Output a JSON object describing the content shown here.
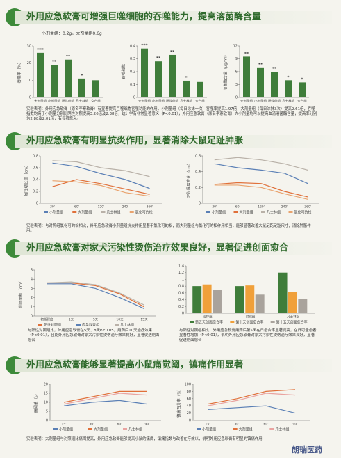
{
  "sections": [
    {
      "title": "外用应急软膏可增强巨噬细胞的吞噬能力，提高溶菌酶含量",
      "subtitle": "小剂量组：0.2g，大剂量组0.6g",
      "note": "实验表明：外用应急软膏（原名李寨软膏）有显著提高巨噬细胞吞噬功能的作用，小剂量组（每日涂抹一次）吞噬率提高1.97倍，大剂量组（每日涂抹3次）提高2.61倍，吞噬指数均高于小剂量分别比阴性对照提高3.26倍及2.38倍，统计学有非常显著意义（P<0.01），外用应急软膏（原名李寨软膏）大小剂量均可以提高血清溶菌酶含量，提高率分别为2.88及2.01倍，有显著意义。"
    },
    {
      "title": "外用应急软膏有明显抗炎作用，显著消除大鼠足趾肿胀",
      "note": "实验表明：与对照组氯化可的松相比，外用应急软膏小剂量组抗炎作用显著于氯化可的松，而大剂量组与氯化可的松作用相当，能够显著改善大鼠足跖足趾尺寸，消除肿胀作用。"
    },
    {
      "title": "外用应急软膏对家犬污染性烫伤治疗效果良好，显著促进创面愈合",
      "notes": [
        "与阳性对照组比，外用应急软膏在5天、8天P<0.05，用药后10天治疗效果（P<0.01），且能外用应急软膏对家犬污染性烫伤治疗效果良好，显著促进创面愈合",
        "与阳性对照组相比，外用应急软膏用药后第5天在日愈合率显著提高，在日可全愈者显著性增加（P<0.01），说明外用应急软膏对家犬污染性烫伤治疗效果良好，显著促进创面愈合"
      ]
    },
    {
      "title": "外用应急软膏能够显著提高小鼠痛觉阈，镇痛作用显著",
      "note": "实验表明：大剂量组与对照组比痛阈提高，外用应急软膏能够提高小鼠的痛阈，镇痛指数与改善在疗效以，说明外用应急软膏有明显的镇痛作用"
    }
  ],
  "watermark": "朗瑞医药",
  "chart_data": [
    {
      "type": "bar",
      "y_label": "吞噬率（%）",
      "categories": [
        "大剂量组",
        "小剂量组",
        "阳性药组",
        "凡士林组",
        "空白组"
      ],
      "values": [
        26,
        19,
        22,
        11,
        10
      ],
      "significance": [
        "***",
        "**",
        "**",
        "*",
        null
      ],
      "color": "#3f7d3a",
      "ylim": [
        0,
        30
      ],
      "yticks": [
        0,
        10,
        20,
        30
      ]
    },
    {
      "type": "bar",
      "y_label": "吞噬指数",
      "categories": [
        "大剂量组",
        "小剂量组",
        "阳性药组",
        "凡士林组",
        "空白组"
      ],
      "values": [
        0.38,
        0.28,
        0.33,
        0.13,
        0.12
      ],
      "significance": [
        "***",
        "**",
        "**",
        "*",
        null
      ],
      "color": "#3f7d3a",
      "ylim": [
        0,
        0.4
      ],
      "yticks": [
        0,
        0.1,
        0.2,
        0.3,
        0.4
      ]
    },
    {
      "type": "bar",
      "y_label": "溶菌酶含量（μg/ml）",
      "categories": [
        "大剂量组",
        "小剂量组",
        "阳性药组",
        "凡士林组",
        "空白组"
      ],
      "values": [
        9.5,
        7,
        6,
        4,
        3.5
      ],
      "significance": [
        "**",
        "**",
        "**",
        "*",
        "*"
      ],
      "color": "#3f7d3a",
      "ylim": [
        0,
        12
      ],
      "yticks": [
        0,
        3,
        6,
        9,
        12
      ]
    },
    {
      "type": "line",
      "y_label": "周径增长值（cm）",
      "categories": [
        "30'",
        "60'",
        "120'",
        "240'",
        "360'"
      ],
      "ylim": [
        0,
        0.8
      ],
      "yticks": [
        0,
        0.2,
        0.4,
        0.6,
        0.8
      ],
      "series": [
        {
          "name": "小剂量组",
          "color": "#5a7fb5",
          "values": [
            0.68,
            0.62,
            0.5,
            0.4,
            0.25
          ]
        },
        {
          "name": "大剂量组",
          "color": "#e0703a",
          "values": [
            0.28,
            0.4,
            0.33,
            0.24,
            0.15
          ]
        },
        {
          "name": "凡士林组",
          "color": "#b9b1a8",
          "values": [
            0.72,
            0.7,
            0.6,
            0.55,
            0.45
          ]
        },
        {
          "name": "氯化可的松",
          "color": "#e9a36e",
          "values": [
            0.38,
            0.36,
            0.3,
            0.18,
            0.12
          ]
        }
      ]
    },
    {
      "type": "line",
      "y_label": "足趾厚度变化（cm）",
      "categories": [
        "30'",
        "60'",
        "120'",
        "240'",
        "360'"
      ],
      "ylim": [
        0,
        0.6
      ],
      "yticks": [
        0,
        0.2,
        0.4,
        0.6
      ],
      "series": [
        {
          "name": "小剂量组",
          "color": "#5a7fb5",
          "values": [
            0.5,
            0.45,
            0.42,
            0.38,
            0.25
          ]
        },
        {
          "name": "大剂量组",
          "color": "#e0703a",
          "values": [
            0.24,
            0.26,
            0.25,
            0.15,
            0.08
          ]
        },
        {
          "name": "凡士林组",
          "color": "#b9b1a8",
          "values": [
            0.55,
            0.58,
            0.55,
            0.5,
            0.42
          ]
        },
        {
          "name": "氯化可的松",
          "color": "#e9a36e",
          "values": [
            0.23,
            0.23,
            0.2,
            0.12,
            0.05
          ]
        }
      ]
    },
    {
      "type": "line",
      "y_label": "创面面积（cm²）",
      "categories": [
        "初期程度",
        "1天",
        "5天",
        "10天",
        "15天"
      ],
      "ylim": [
        0,
        5
      ],
      "yticks": [
        0,
        1,
        2,
        3,
        4,
        5
      ],
      "series": [
        {
          "name": "阳性对照组",
          "color": "#e0703a",
          "values": [
            3.6,
            3.6,
            3.3,
            2.4,
            1.0
          ]
        },
        {
          "name": "应急软膏组",
          "color": "#5a7fb5",
          "values": [
            3.5,
            3.5,
            3.0,
            2.0,
            0.8
          ]
        },
        {
          "name": "凡士林组",
          "color": "#b9b1a8",
          "values": [
            3.6,
            3.7,
            3.4,
            2.5,
            1.2
          ]
        }
      ]
    },
    {
      "type": "bar",
      "categories": [
        "治疗组",
        "对照组",
        "凡士林组"
      ],
      "ylim": [
        0,
        1.4
      ],
      "yticks": [
        0,
        0.2,
        0.4,
        0.6,
        0.8,
        1,
        1.2,
        1.4
      ],
      "series": [
        {
          "name": "第五天创面愈合率",
          "color": "#3f7d3a",
          "values": [
            0.8,
            0.8,
            1.2
          ]
        },
        {
          "name": "第十天创面愈合率",
          "color": "#f0a03a",
          "values": [
            0.85,
            0.82,
            0.62
          ]
        },
        {
          "name": "第十五天创面愈合率",
          "color": "#a9a39c",
          "values": [
            0.7,
            0.55,
            0.42
          ]
        }
      ]
    },
    {
      "type": "line",
      "y_label": "痛阈值（s）",
      "categories": [
        "15'",
        "30'",
        "60'",
        "90'"
      ],
      "ylim": [
        0,
        20
      ],
      "yticks": [
        0,
        5,
        10,
        15,
        20
      ],
      "series": [
        {
          "name": "小剂量组",
          "color": "#5a7fb5",
          "values": [
            8,
            10,
            11,
            9
          ]
        },
        {
          "name": "大剂量组",
          "color": "#e0703a",
          "values": [
            10,
            13,
            16,
            16
          ]
        },
        {
          "name": "凡士林组",
          "color": "#e9a3a0",
          "values": [
            9,
            12,
            15,
            14
          ]
        }
      ]
    },
    {
      "type": "line",
      "y_label": "镇痛百分率（%）",
      "categories": [
        "15'",
        "30'",
        "60'",
        "90'"
      ],
      "ylim": [
        0,
        100
      ],
      "yticks": [
        0,
        20,
        40,
        60,
        80,
        100
      ],
      "series": [
        {
          "name": "小剂量组",
          "color": "#5a7fb5",
          "values": [
            30,
            35,
            40,
            20
          ]
        },
        {
          "name": "大剂量组",
          "color": "#e0703a",
          "values": [
            45,
            60,
            80,
            85
          ]
        },
        {
          "name": "凡士林组",
          "color": "#e9a3a0",
          "values": [
            40,
            55,
            75,
            70
          ]
        }
      ]
    }
  ]
}
